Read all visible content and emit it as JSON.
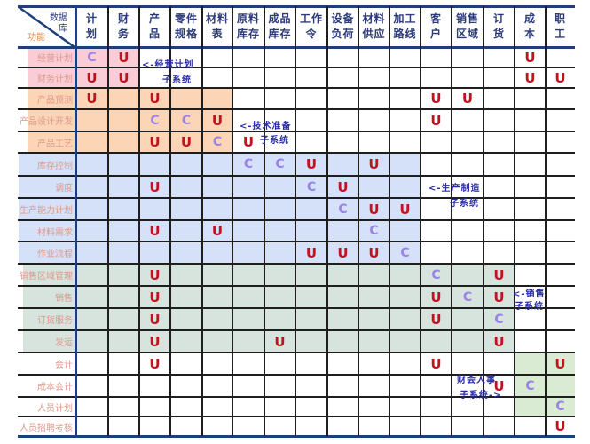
{
  "corner": {
    "database_label_line1": "数据",
    "database_label_line2": "库",
    "function_label": "功能"
  },
  "colors": {
    "pink": "#f9ccd6",
    "orange": "#fcd4b6",
    "blue": "#d5e1f8",
    "green": "#d7e3dd",
    "lightgreen": "#d9ecd3",
    "mark_U": "#c3111f",
    "mark_C": "#9b82e6",
    "annotation": "#2a2ca6",
    "header_text": "#2d3b7c",
    "row_label_text": "#dd9a8b"
  },
  "columns": [
    {
      "label": "计划",
      "lines": [
        "计",
        "划"
      ]
    },
    {
      "label": "财务",
      "lines": [
        "财",
        "务"
      ]
    },
    {
      "label": "产品",
      "lines": [
        "产",
        "品"
      ]
    },
    {
      "label": "零件规格",
      "lines": [
        "零件",
        "规格"
      ]
    },
    {
      "label": "材料表",
      "lines": [
        "材料",
        "表"
      ]
    },
    {
      "label": "原料库存",
      "lines": [
        "原料",
        "库存"
      ]
    },
    {
      "label": "成品库存",
      "lines": [
        "成品",
        "库存"
      ]
    },
    {
      "label": "工作令",
      "lines": [
        "工作",
        "令"
      ]
    },
    {
      "label": "设备负荷",
      "lines": [
        "设备",
        "负荷"
      ]
    },
    {
      "label": "材料供应",
      "lines": [
        "材料",
        "供应"
      ]
    },
    {
      "label": "加工路线",
      "lines": [
        "加工",
        "路线"
      ]
    },
    {
      "label": "客户",
      "lines": [
        "客",
        "户"
      ]
    },
    {
      "label": "销售区域",
      "lines": [
        "销售",
        "区域"
      ]
    },
    {
      "label": "订货",
      "lines": [
        "订",
        "货"
      ]
    },
    {
      "label": "成本",
      "lines": [
        "成",
        "本"
      ]
    },
    {
      "label": "职工",
      "lines": [
        "职",
        "工"
      ]
    }
  ],
  "rows": [
    {
      "label": "经营计划",
      "cells": [
        "C",
        "U",
        "",
        "",
        "",
        "",
        "",
        "",
        "",
        "",
        "",
        "",
        "",
        "",
        "U",
        ""
      ]
    },
    {
      "label": "财务计划",
      "cells": [
        "U",
        "U",
        "",
        "",
        "",
        "",
        "",
        "",
        "",
        "",
        "",
        "",
        "",
        "",
        "U",
        "U"
      ]
    },
    {
      "label": "产品预测",
      "cells": [
        "U",
        "",
        "U",
        "",
        "",
        "",
        "",
        "",
        "",
        "",
        "",
        "U",
        "U",
        "",
        "",
        ""
      ]
    },
    {
      "label": "产品设计开发",
      "cells": [
        "",
        "",
        "C",
        "C",
        "U",
        "",
        "",
        "",
        "",
        "",
        "",
        "U",
        "",
        "",
        "",
        ""
      ]
    },
    {
      "label": "产品工艺",
      "cells": [
        "",
        "",
        "U",
        "U",
        "C",
        "U",
        "",
        "",
        "",
        "",
        "",
        "",
        "",
        "",
        "",
        ""
      ]
    },
    {
      "label": "库存控制",
      "cells": [
        "",
        "",
        "",
        "",
        "",
        "C",
        "C",
        "U",
        "",
        "U",
        "",
        "",
        "",
        "",
        "",
        ""
      ]
    },
    {
      "label": "调度",
      "cells": [
        "",
        "",
        "U",
        "",
        "",
        "",
        "",
        "C",
        "U",
        "",
        "",
        "",
        "",
        "",
        "",
        ""
      ]
    },
    {
      "label": "生产能力计划",
      "cells": [
        "",
        "",
        "",
        "",
        "",
        "",
        "",
        "",
        "C",
        "U",
        "U",
        "",
        "",
        "",
        "",
        ""
      ]
    },
    {
      "label": "材料需求",
      "cells": [
        "",
        "",
        "U",
        "",
        "U",
        "",
        "",
        "",
        "",
        "C",
        "",
        "",
        "",
        "",
        "",
        ""
      ]
    },
    {
      "label": "作业流程",
      "cells": [
        "",
        "",
        "",
        "",
        "",
        "",
        "",
        "U",
        "U",
        "U",
        "C",
        "",
        "",
        "",
        "",
        ""
      ]
    },
    {
      "label": "销售区域管理",
      "cells": [
        "",
        "",
        "U",
        "",
        "",
        "",
        "",
        "",
        "",
        "",
        "",
        "C",
        "",
        "U",
        "",
        ""
      ]
    },
    {
      "label": "销售",
      "cells": [
        "",
        "",
        "U",
        "",
        "",
        "",
        "",
        "",
        "",
        "",
        "",
        "U",
        "C",
        "U",
        "",
        ""
      ]
    },
    {
      "label": "订货服务",
      "cells": [
        "",
        "",
        "U",
        "",
        "",
        "",
        "",
        "",
        "",
        "",
        "",
        "U",
        "",
        "C",
        "",
        ""
      ]
    },
    {
      "label": "发运",
      "cells": [
        "",
        "",
        "U",
        "",
        "",
        "",
        "U",
        "",
        "",
        "",
        "",
        "",
        "",
        "U",
        "",
        ""
      ]
    },
    {
      "label": "会计",
      "cells": [
        "",
        "",
        "U",
        "",
        "",
        "",
        "",
        "",
        "",
        "",
        "",
        "U",
        "",
        "",
        "",
        "U"
      ]
    },
    {
      "label": "成本会计",
      "cells": [
        "",
        "",
        "",
        "",
        "",
        "",
        "",
        "",
        "",
        "",
        "",
        "",
        "",
        "U",
        "C",
        ""
      ]
    },
    {
      "label": "人员计划",
      "cells": [
        "",
        "",
        "",
        "",
        "",
        "",
        "",
        "",
        "",
        "",
        "",
        "",
        "",
        "",
        "",
        "C"
      ]
    },
    {
      "label": "人员招聘考核",
      "cells": [
        "",
        "",
        "",
        "",
        "",
        "",
        "",
        "",
        "",
        "",
        "",
        "",
        "",
        "",
        "",
        "U"
      ]
    }
  ],
  "regions": [
    {
      "name": "经营计划子系统",
      "color": "pink",
      "rows": [
        0,
        1
      ],
      "cols": [
        0,
        1
      ],
      "include_label": true
    },
    {
      "name": "技术准备子系统",
      "color": "orange",
      "rows": [
        2,
        4
      ],
      "cols": [
        0,
        4
      ],
      "include_label": true
    },
    {
      "name": "生产制造子系统",
      "color": "blue",
      "rows": [
        5,
        9
      ],
      "cols": [
        0,
        10
      ],
      "include_label": true
    },
    {
      "name": "销售子系统",
      "color": "green",
      "rows": [
        10,
        13
      ],
      "cols": [
        0,
        13
      ],
      "include_label": true
    },
    {
      "name": "财会人事子系统",
      "color": "lightgreen",
      "rows": [
        14,
        16
      ],
      "cols": [
        14,
        15
      ],
      "include_label": false
    }
  ],
  "annotations": [
    {
      "line1": "<-经营计划",
      "line2": "子系统"
    },
    {
      "line1": "<-技术准备",
      "line2": "子系统"
    },
    {
      "line1": "<-生产制造",
      "line2": "子系统"
    },
    {
      "line1": "<-销售",
      "line2": "子系统"
    },
    {
      "line1": "财会人事",
      "line2": "子系统->"
    }
  ]
}
